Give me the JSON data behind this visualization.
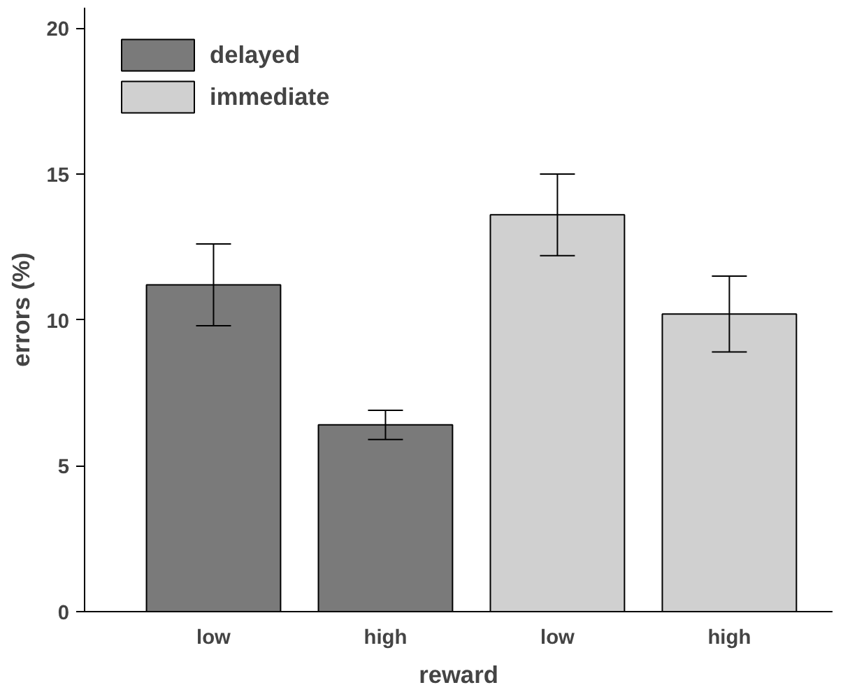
{
  "chart_data": {
    "type": "bar",
    "xlabel": "reward",
    "ylabel": "errors (%)",
    "categories": [
      "low",
      "high",
      "low",
      "high"
    ],
    "series": [
      {
        "name": "delayed",
        "color": "#7a7a7a",
        "values": [
          11.2,
          6.4,
          null,
          null
        ],
        "errors": [
          1.4,
          0.5,
          null,
          null
        ]
      },
      {
        "name": "immediate",
        "color": "#d0d0d0",
        "values": [
          null,
          null,
          13.6,
          10.2
        ],
        "errors": [
          null,
          null,
          1.4,
          1.3
        ]
      }
    ],
    "ylim": [
      0,
      20.7
    ],
    "yticks": [
      0,
      5,
      10,
      15,
      20
    ],
    "grid": false,
    "legend": "top left"
  }
}
